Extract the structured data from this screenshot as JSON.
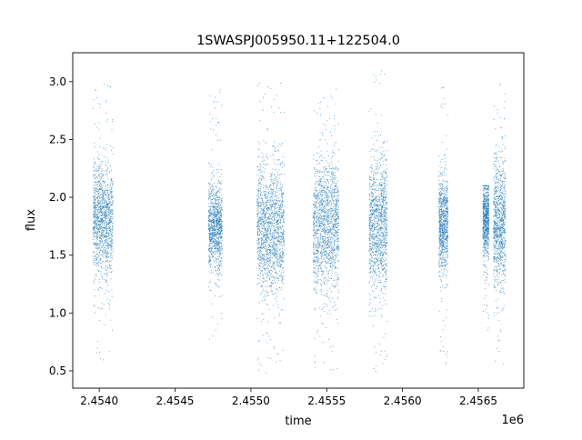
{
  "chart_data": {
    "type": "scatter",
    "title": "1SWASPJ005950.11+122504.0",
    "xlabel": "time",
    "ylabel": "flux",
    "x_offset_label": "1e6",
    "xlim": [
      2453825,
      2456800
    ],
    "ylim": [
      0.35,
      3.25
    ],
    "xticks": [
      2454000,
      2454500,
      2455000,
      2455500,
      2456000,
      2456500
    ],
    "xtick_labels": [
      "2.4540",
      "2.4545",
      "2.4550",
      "2.4555",
      "2.4560",
      "2.4565"
    ],
    "yticks": [
      0.5,
      1.0,
      1.5,
      2.0,
      2.5,
      3.0
    ],
    "ytick_labels": [
      "0.5",
      "1.0",
      "1.5",
      "2.0",
      "2.5",
      "3.0"
    ],
    "grid": false,
    "marker_color": "#1f77b4",
    "seasons": [
      {
        "x_start": 2453960,
        "x_end": 2454090,
        "y_core": [
          1.45,
          2.2
        ],
        "y_min": 0.55,
        "y_max": 2.98
      },
      {
        "x_start": 2454720,
        "x_end": 2454810,
        "y_core": [
          1.45,
          2.05
        ],
        "y_min": 0.65,
        "y_max": 2.95
      },
      {
        "x_start": 2455040,
        "x_end": 2455220,
        "y_core": [
          1.3,
          2.15
        ],
        "y_min": 0.48,
        "y_max": 3.05
      },
      {
        "x_start": 2455410,
        "x_end": 2455580,
        "y_core": [
          1.3,
          2.2
        ],
        "y_min": 0.5,
        "y_max": 2.95
      },
      {
        "x_start": 2455780,
        "x_end": 2455900,
        "y_core": [
          1.3,
          2.2
        ],
        "y_min": 0.48,
        "y_max": 3.1
      },
      {
        "x_start": 2456240,
        "x_end": 2456300,
        "y_core": [
          1.45,
          2.1
        ],
        "y_min": 0.5,
        "y_max": 3.05
      },
      {
        "x_start": 2456530,
        "x_end": 2456570,
        "y_core": [
          1.55,
          2.05
        ],
        "y_min": 0.85,
        "y_max": 2.1
      },
      {
        "x_start": 2456600,
        "x_end": 2456680,
        "y_core": [
          1.35,
          2.2
        ],
        "y_min": 0.55,
        "y_max": 3.05
      }
    ]
  }
}
